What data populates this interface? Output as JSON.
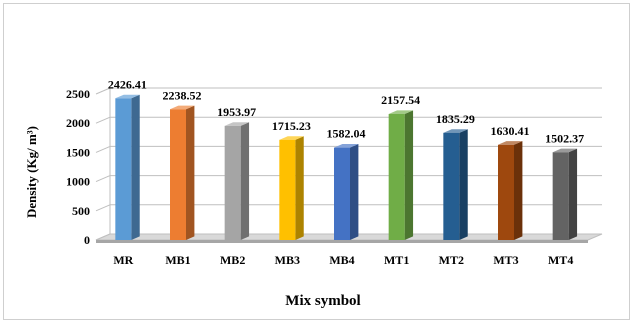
{
  "chart_data": {
    "type": "bar",
    "categories": [
      "MR",
      "MB1",
      "MB2",
      "MB3",
      "MB4",
      "MT1",
      "MT2",
      "MT3",
      "MT4"
    ],
    "values": [
      2426.41,
      2238.52,
      1953.97,
      1715.23,
      1582.04,
      2157.54,
      1835.29,
      1630.41,
      1502.37
    ],
    "value_labels": [
      "2426.41",
      "2238.52",
      "1953.97",
      "1715.23",
      "1582.04",
      "2157.54",
      "1835.29",
      "1630.41",
      "1502.37"
    ],
    "colors": [
      "#5b9bd5",
      "#ed7d31",
      "#a5a5a5",
      "#ffc000",
      "#4472c4",
      "#70ad47",
      "#255e91",
      "#9e480e",
      "#636363"
    ],
    "xlabel": "Mix symbol",
    "ylabel": "Density  (Kg/ m³)",
    "ylim": [
      0,
      2500
    ],
    "yticks": [
      0,
      500,
      1000,
      1500,
      2000,
      2500
    ],
    "grid": true,
    "legend": "none"
  }
}
